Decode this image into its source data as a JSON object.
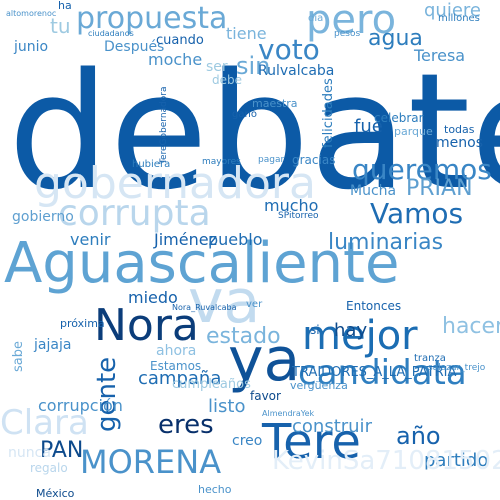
{
  "cloud": {
    "words": [
      {
        "text": "debate",
        "color": "#0c5aa6"
      },
      {
        "text": "Aguascaliente",
        "color": "#5ea3d3"
      },
      {
        "text": "gobernadora",
        "color": "#d6e6f4"
      },
      {
        "text": "corrupta",
        "color": "#b9d6ec"
      },
      {
        "text": "mejor",
        "color": "#1b6db3"
      },
      {
        "text": "candidata",
        "color": "#2f7fc0"
      },
      {
        "text": "Tere",
        "color": "#1762ac"
      },
      {
        "text": "MORENA",
        "color": "#4a92ca"
      },
      {
        "text": "Nora",
        "color": "#0b3d7a"
      },
      {
        "text": "ya",
        "color": "#0f5298"
      },
      {
        "text": "va",
        "color": "#c2dbef"
      },
      {
        "text": "propuesta",
        "color": "#6aa9d6"
      },
      {
        "text": "pero",
        "color": "#7ab4dc"
      },
      {
        "text": "voto",
        "color": "#3a86c5"
      },
      {
        "text": "agua",
        "color": "#2d7dbd"
      },
      {
        "text": "sin",
        "color": "#6aa9d6"
      },
      {
        "text": "queremos",
        "color": "#3a86c5"
      },
      {
        "text": "PRIAN",
        "color": "#5e9fd0"
      },
      {
        "text": "Vamos",
        "color": "#1f6db3"
      },
      {
        "text": "luminarias",
        "color": "#3a86c5"
      },
      {
        "text": "estado",
        "color": "#7ab4dc"
      },
      {
        "text": "gente",
        "color": "#1762ac"
      },
      {
        "text": "eres",
        "color": "#08306b"
      },
      {
        "text": "PAN",
        "color": "#0d4a8c"
      },
      {
        "text": "año",
        "color": "#1762ac"
      },
      {
        "text": "partido",
        "color": "#2d7dbd"
      },
      {
        "text": "campaña",
        "color": "#1f6db3"
      },
      {
        "text": "listo",
        "color": "#4a92ca"
      },
      {
        "text": "hacer",
        "color": "#8fc1e2"
      },
      {
        "text": "Clara",
        "color": "#cfe2f3"
      },
      {
        "text": "TRAIDORES_A_LA_PATRIA",
        "color": "#1f6db3"
      },
      {
        "text": "hay",
        "color": "#0d4a8c"
      },
      {
        "text": "fue",
        "color": "#1762ac"
      },
      {
        "text": "corrupción",
        "color": "#4a92ca"
      },
      {
        "text": "construir",
        "color": "#4a92ca"
      },
      {
        "text": "Jiménez",
        "color": "#1762ac"
      },
      {
        "text": "pueblo",
        "color": "#1f6db3"
      },
      {
        "text": "venir",
        "color": "#2d7dbd"
      },
      {
        "text": "miedo",
        "color": "#1762ac"
      },
      {
        "text": "junio",
        "color": "#3a86c5"
      },
      {
        "text": "moche",
        "color": "#4a92ca"
      },
      {
        "text": "Teresa",
        "color": "#4a92ca"
      },
      {
        "text": "Rulvalcaba",
        "color": "#1f6db3"
      },
      {
        "text": "Después",
        "color": "#4a92ca"
      },
      {
        "text": "cuando",
        "color": "#1762ac"
      },
      {
        "text": "tiene",
        "color": "#7ab4dc"
      },
      {
        "text": "mucho",
        "color": "#1f6db3"
      },
      {
        "text": "felicidades",
        "color": "#2d7dbd"
      },
      {
        "text": "gobierno",
        "color": "#5e9fd0"
      },
      {
        "text": "quiere",
        "color": "#7ab4dc"
      },
      {
        "text": "menos",
        "color": "#1762ac"
      },
      {
        "text": "todas",
        "color": "#1762ac"
      },
      {
        "text": "parque",
        "color": "#6aa9d6"
      },
      {
        "text": "celebrar",
        "color": "#2d7dbd"
      },
      {
        "text": "maestra",
        "color": "#4a92ca"
      },
      {
        "text": "favor",
        "color": "#0d4a8c"
      },
      {
        "text": "creo",
        "color": "#3a86c5"
      },
      {
        "text": "gracias",
        "color": "#3a86c5"
      },
      {
        "text": "Estamos",
        "color": "#4a92ca"
      },
      {
        "text": "ahora",
        "color": "#8fc1e2"
      },
      {
        "text": "jajaja",
        "color": "#3a86c5"
      },
      {
        "text": "próxima",
        "color": "#1762ac"
      },
      {
        "text": "Entonces",
        "color": "#1762ac"
      },
      {
        "text": "Mucha",
        "color": "#4a92ca"
      },
      {
        "text": "hecho",
        "color": "#4a92ca"
      },
      {
        "text": "México",
        "color": "#0d4a8c"
      },
      {
        "text": "TereGobernadora",
        "color": "#1762ac"
      },
      {
        "text": "ciudadanos",
        "color": "#2d7dbd"
      },
      {
        "text": "millones",
        "color": "#2d7dbd"
      },
      {
        "text": "hubiera",
        "color": "#2d7dbd"
      },
      {
        "text": "mayores",
        "color": "#2d7dbd"
      },
      {
        "text": "sabe",
        "color": "#6aa9d6"
      },
      {
        "text": "pagar",
        "color": "#4a92ca"
      },
      {
        "text": "cumpleaños",
        "color": "#9ecae1"
      },
      {
        "text": "vergüenza",
        "color": "#4a92ca"
      },
      {
        "text": "tranza",
        "color": "#1f6db3"
      },
      {
        "text": "salazar_trejo",
        "color": "#4a92ca"
      },
      {
        "text": "KevinSa71081502",
        "color": "#e3eef8"
      },
      {
        "text": "Nora_Ruvalcaba",
        "color": "#1762ac"
      },
      {
        "text": "ganó",
        "color": "#1762ac"
      },
      {
        "text": "SPitorreo",
        "color": "#1762ac"
      },
      {
        "text": "AlmendraYek",
        "color": "#4a92ca"
      },
      {
        "text": "regalo",
        "color": "#b9d6ec"
      },
      {
        "text": "nunca",
        "color": "#d6e6f4"
      },
      {
        "text": "día",
        "color": "#6aa9d6"
      },
      {
        "text": "pesos",
        "color": "#4a92ca"
      },
      {
        "text": "altomorenoc",
        "color": "#4a92ca"
      },
      {
        "text": "ha",
        "color": "#1762ac"
      },
      {
        "text": "tu",
        "color": "#9ecae1"
      },
      {
        "text": "ser",
        "color": "#9ecae1"
      },
      {
        "text": "debe",
        "color": "#9ecae1"
      },
      {
        "text": "si",
        "color": "#1762ac"
      },
      {
        "text": "ver",
        "color": "#4a92ca"
      }
    ]
  }
}
